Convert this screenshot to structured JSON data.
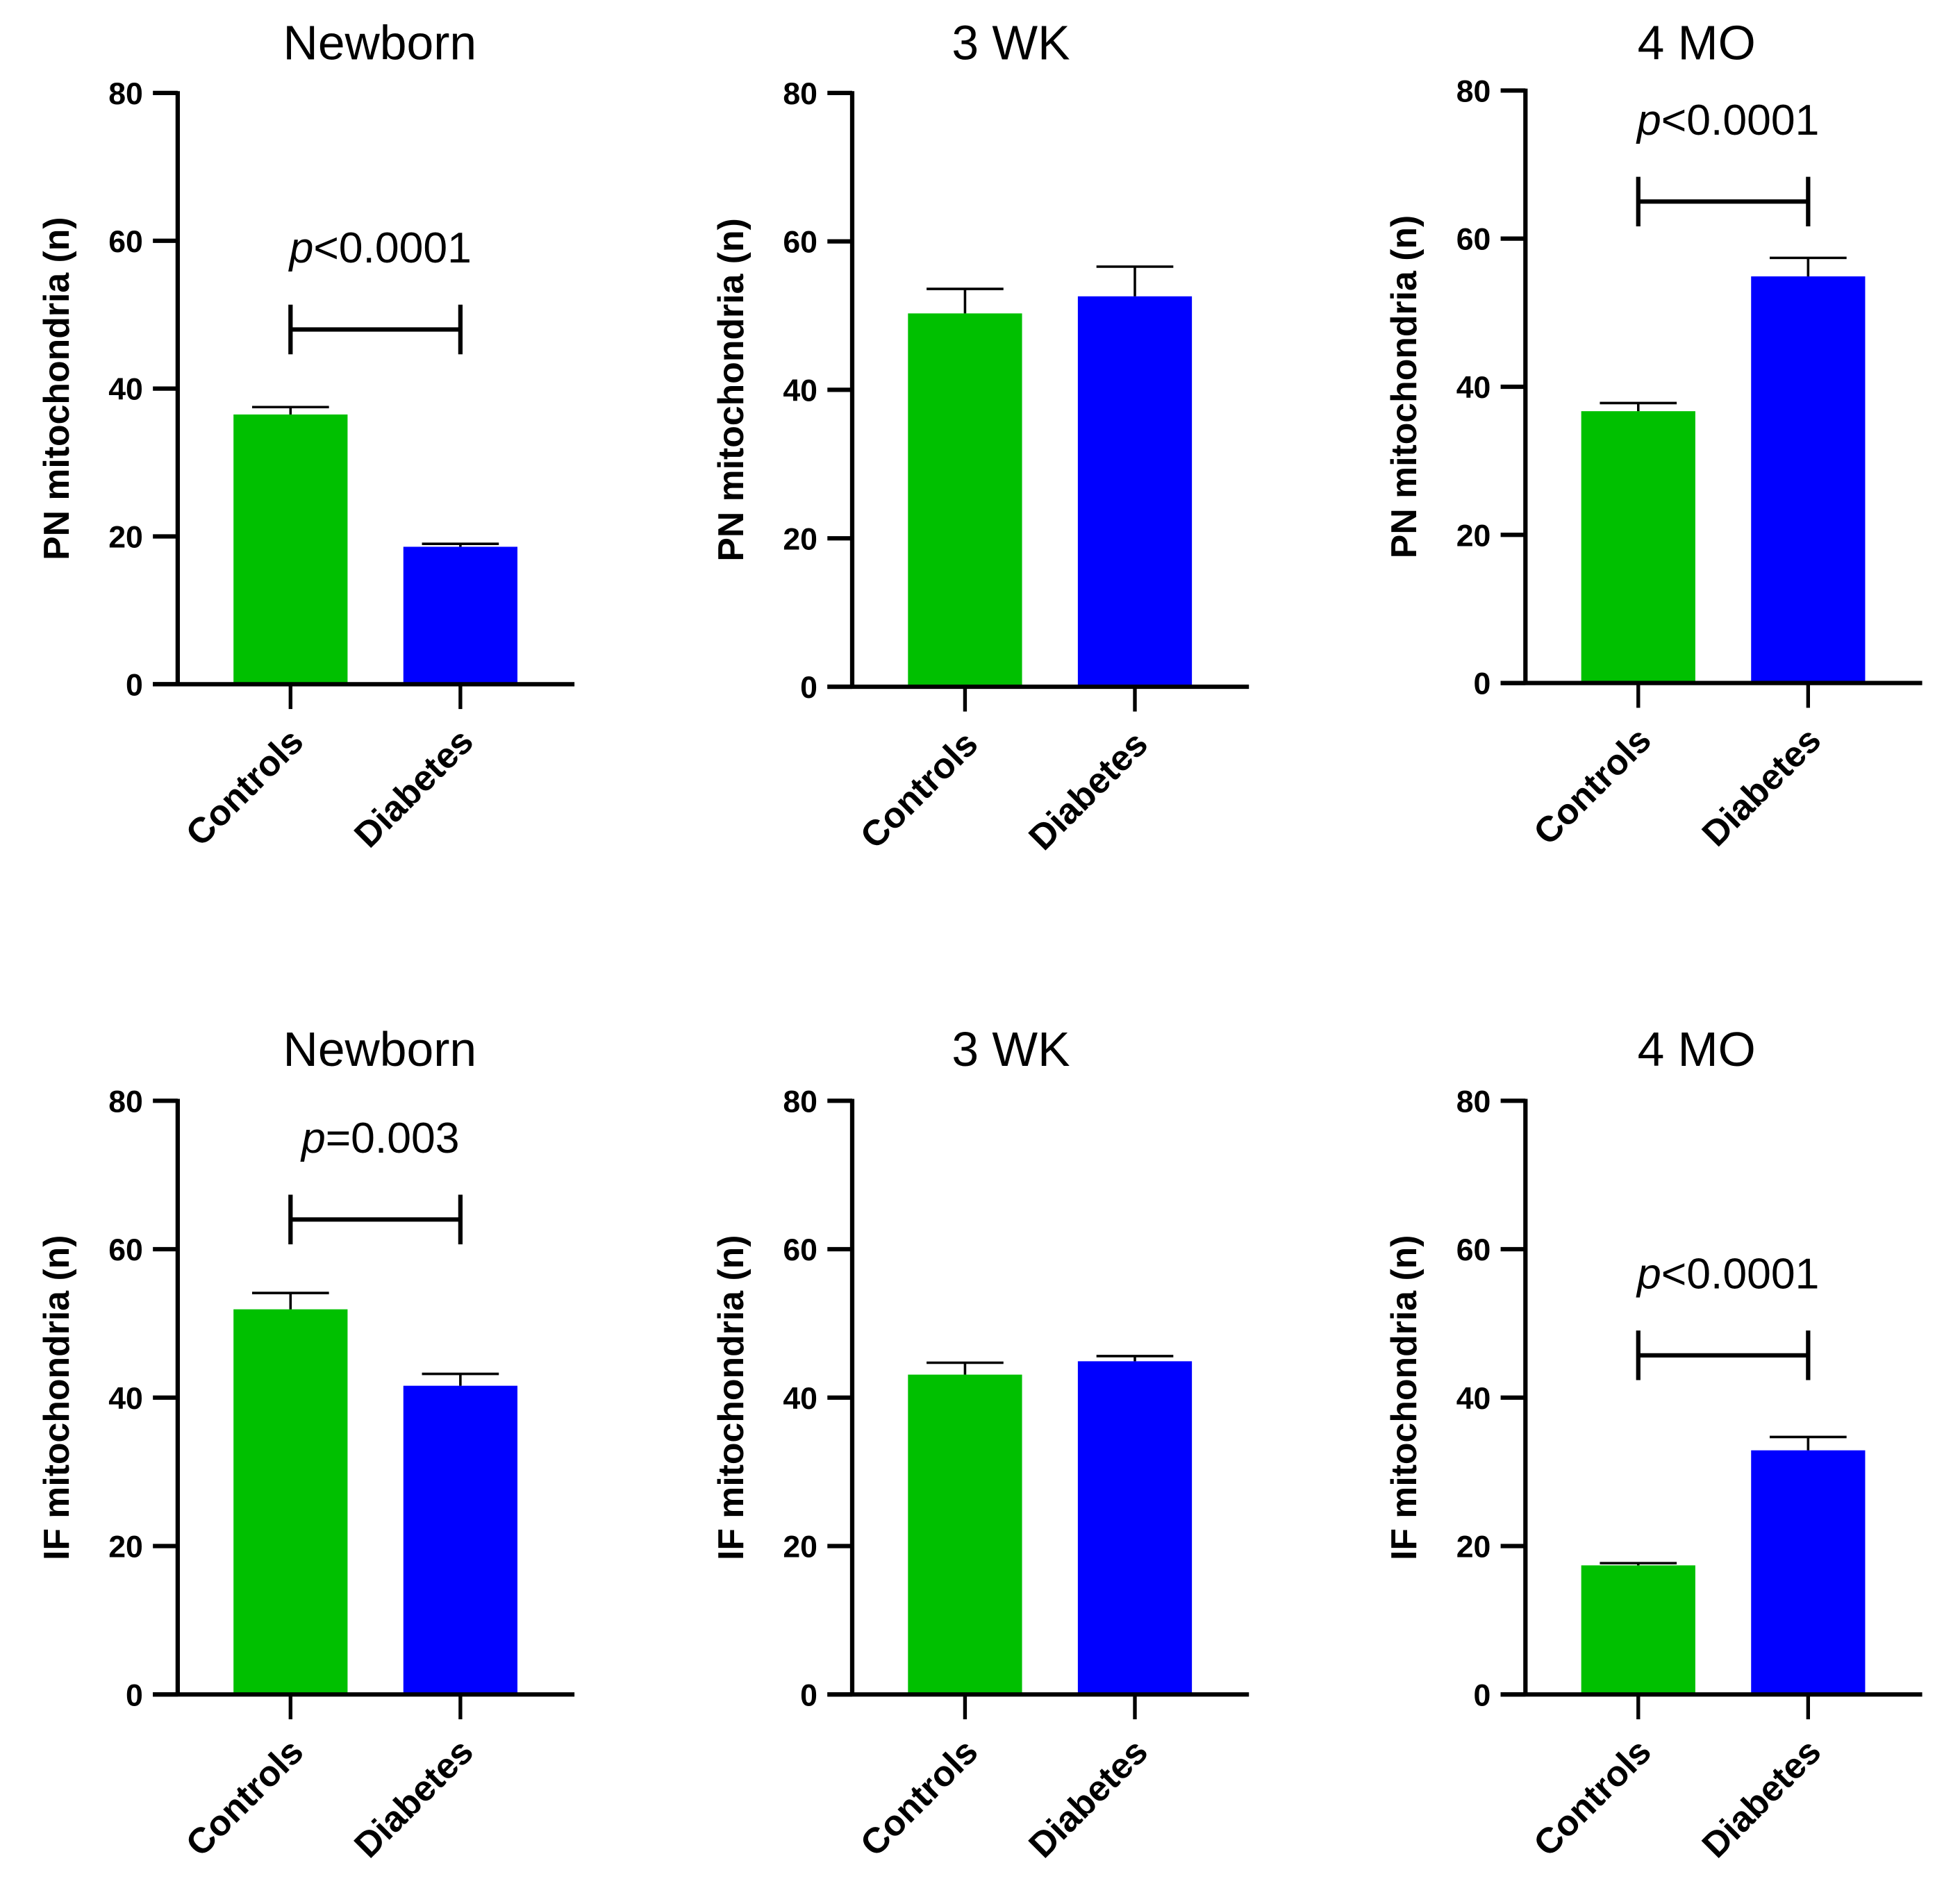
{
  "colors": {
    "Controls": "#00c000",
    "Diabetes": "#0000ff",
    "axis": "#000000"
  },
  "chart_data": [
    {
      "type": "bar",
      "title": "Newborn",
      "ylabel": "PN mitochondria (n)",
      "ylim": [
        0,
        80
      ],
      "yticks": [
        "0",
        "20",
        "40",
        "60",
        "80"
      ],
      "categories": [
        "Controls",
        "Diabetes"
      ],
      "values": [
        36.5,
        18.6
      ],
      "errors": [
        1.0,
        0.4
      ],
      "significance": {
        "text_italic": "p",
        "text": "<0.0001",
        "level": 48
      }
    },
    {
      "type": "bar",
      "title": "3 WK",
      "ylabel": "PN mitochondria (n)",
      "ylim": [
        0,
        80
      ],
      "yticks": [
        "0",
        "20",
        "40",
        "60",
        "80"
      ],
      "categories": [
        "Controls",
        "Diabetes"
      ],
      "values": [
        50.3,
        52.6
      ],
      "errors": [
        3.3,
        4.0
      ],
      "significance": null
    },
    {
      "type": "bar",
      "title": "4  MO",
      "ylabel": "PN mitochondria (n)",
      "ylim": [
        0,
        80
      ],
      "yticks": [
        "0",
        "20",
        "40",
        "60",
        "80"
      ],
      "categories": [
        "Controls",
        "Diabetes"
      ],
      "values": [
        36.7,
        54.9
      ],
      "errors": [
        1.1,
        2.5
      ],
      "significance": {
        "text_italic": "p",
        "text": "<0.0001",
        "level": 65
      }
    },
    {
      "type": "bar",
      "title": "Newborn",
      "ylabel": "IF mitochondria (n)",
      "ylim": [
        0,
        80
      ],
      "yticks": [
        "0",
        "20",
        "40",
        "60",
        "80"
      ],
      "categories": [
        "Controls",
        "Diabetes"
      ],
      "values": [
        51.9,
        41.6
      ],
      "errors": [
        2.2,
        1.6
      ],
      "significance": {
        "text_italic": "p",
        "text": "=0.003",
        "level": 64
      }
    },
    {
      "type": "bar",
      "title": "3 WK",
      "ylabel": "IF mitochondria (n)",
      "ylim": [
        0,
        80
      ],
      "yticks": [
        "0",
        "20",
        "40",
        "60",
        "80"
      ],
      "categories": [
        "Controls",
        "Diabetes"
      ],
      "values": [
        43.1,
        44.9
      ],
      "errors": [
        1.6,
        0.7
      ],
      "significance": null
    },
    {
      "type": "bar",
      "title": "4  MO",
      "ylabel": "IF mitochondria (n)",
      "ylim": [
        0,
        80
      ],
      "yticks": [
        "0",
        "20",
        "40",
        "60",
        "80"
      ],
      "categories": [
        "Controls",
        "Diabetes"
      ],
      "values": [
        17.4,
        32.9
      ],
      "errors": [
        0.3,
        1.8
      ],
      "significance": {
        "text_italic": "p",
        "text": "<0.0001",
        "level": 45.7
      }
    }
  ]
}
